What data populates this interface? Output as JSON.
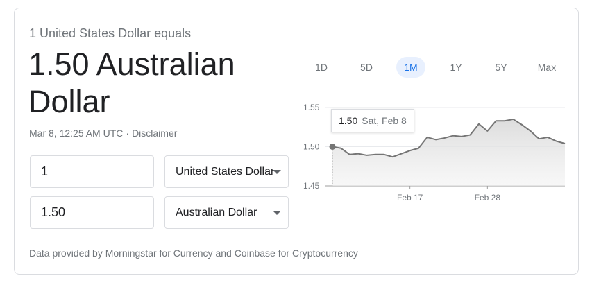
{
  "converter": {
    "equals_text": "1 United States Dollar equals",
    "result_text": "1.50 Australian Dollar",
    "timestamp": "Mar 8, 12:25 AM UTC",
    "separator": "·",
    "disclaimer": "Disclaimer",
    "from_amount": "1",
    "from_currency": "United States Dollar",
    "to_amount": "1.50",
    "to_currency": "Australian Dollar",
    "source_text": "Data provided by Morningstar for Currency and Coinbase for Cryptocurrency"
  },
  "range_tabs": [
    "1D",
    "5D",
    "1M",
    "1Y",
    "5Y",
    "Max"
  ],
  "active_tab": "1M",
  "tooltip": {
    "value": "1.50",
    "date": "Sat, Feb 8"
  },
  "colors": {
    "line": "#757575",
    "area": "#e6e6e6",
    "active_tab_bg": "#e8f0fe",
    "active_tab_text": "#1a73e8"
  },
  "chart_data": {
    "type": "area",
    "title": "",
    "xlabel": "",
    "ylabel": "",
    "y_ticks": [
      "1.55",
      "1.50",
      "1.45"
    ],
    "ylim": [
      1.45,
      1.55
    ],
    "x_tick_labels": [
      {
        "label": "Feb 17",
        "index": 9
      },
      {
        "label": "Feb 28",
        "index": 18
      }
    ],
    "series": [
      {
        "values": [
          1.5,
          1.498,
          1.49,
          1.491,
          1.489,
          1.49,
          1.49,
          1.487,
          1.491,
          1.495,
          1.498,
          1.512,
          1.509,
          1.511,
          1.514,
          1.513,
          1.515,
          1.529,
          1.52,
          1.533,
          1.533,
          1.535,
          1.528,
          1.52,
          1.51,
          1.512,
          1.507,
          1.504
        ]
      }
    ],
    "grid": true,
    "highlight_index": 0
  }
}
